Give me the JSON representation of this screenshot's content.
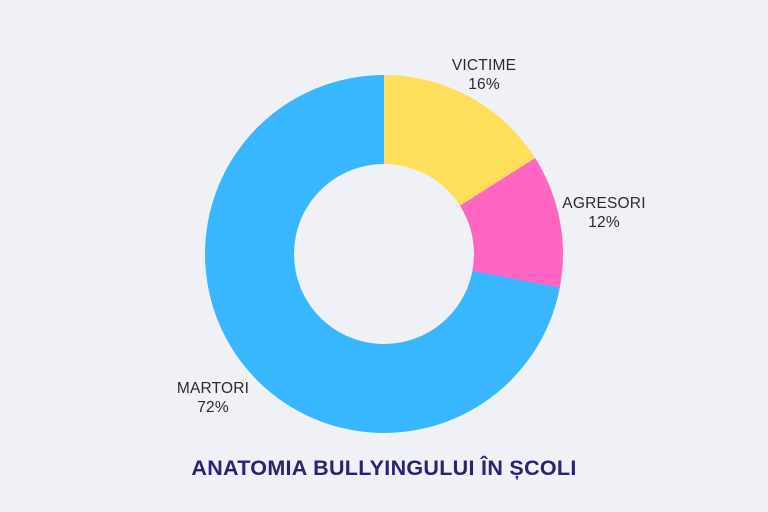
{
  "background_color": "#f0f1f7",
  "title": {
    "text": "ANATOMIA BULLYINGULUI ÎN ȘCOLI",
    "color": "#2a2178"
  },
  "chart_data": {
    "type": "pie",
    "subtype": "donut",
    "title": "ANATOMIA BULLYINGULUI ÎN ȘCOLI",
    "categories": [
      "VICTIME",
      "AGRESORI",
      "MARTORI"
    ],
    "values": [
      16,
      12,
      72
    ],
    "unit": "%",
    "colors": [
      "#ffde59",
      "#ff66c4",
      "#38b6ff"
    ],
    "start_angle_deg": 0,
    "direction": "clockwise",
    "inner_radius_ratio": 0.5,
    "legend": "none",
    "labels": [
      {
        "name": "VICTIME",
        "percent": "16%"
      },
      {
        "name": "AGRESORI",
        "percent": "12%"
      },
      {
        "name": "MARTORI",
        "percent": "72%"
      }
    ]
  }
}
